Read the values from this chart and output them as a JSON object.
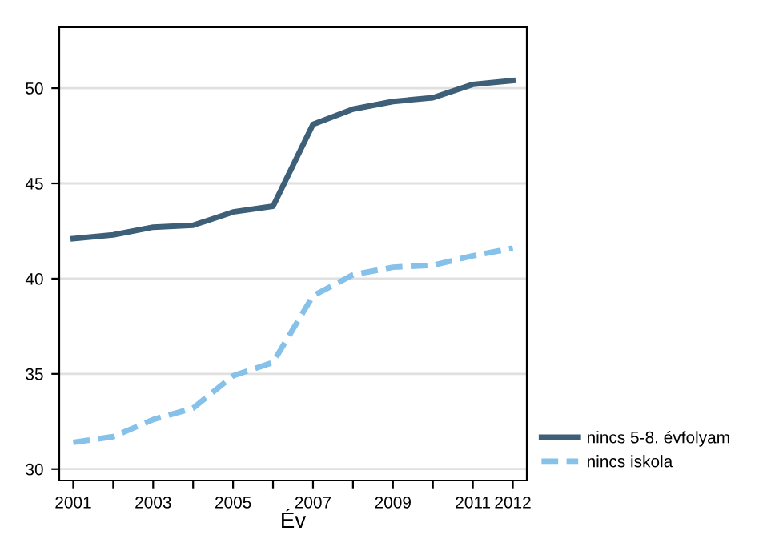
{
  "chart_data": {
    "type": "line",
    "xlabel": "Év",
    "x": [
      2001,
      2002,
      2003,
      2004,
      2005,
      2006,
      2007,
      2008,
      2009,
      2010,
      2011,
      2012
    ],
    "series": [
      {
        "name": "nincs 5-8. évfolyam",
        "color": "#3e5f78",
        "line_style": "solid",
        "values": [
          42.1,
          42.3,
          42.7,
          42.8,
          43.5,
          43.8,
          48.1,
          48.9,
          49.3,
          49.5,
          50.2,
          50.4
        ]
      },
      {
        "name": "nincs iskola",
        "color": "#85c1e9",
        "line_style": "dashed",
        "values": [
          31.4,
          31.7,
          32.6,
          33.2,
          34.9,
          35.6,
          39.1,
          40.2,
          40.6,
          40.7,
          41.2,
          41.6
        ]
      }
    ],
    "xlim": [
      2000.65,
      2012.35
    ],
    "ylim": [
      29.4,
      53.2
    ],
    "xticks": [
      2001,
      {
        "value": 2002,
        "label": null
      },
      2003,
      {
        "value": 2004,
        "label": null
      },
      2005,
      {
        "value": 2006,
        "label": null
      },
      2007,
      {
        "value": 2008,
        "label": null
      },
      2009,
      {
        "value": 2010,
        "label": null
      },
      2011,
      2012
    ],
    "yticks": [
      30,
      35,
      40,
      45,
      50
    ],
    "grid": "y",
    "legend": "bottom right",
    "marker": "none"
  }
}
